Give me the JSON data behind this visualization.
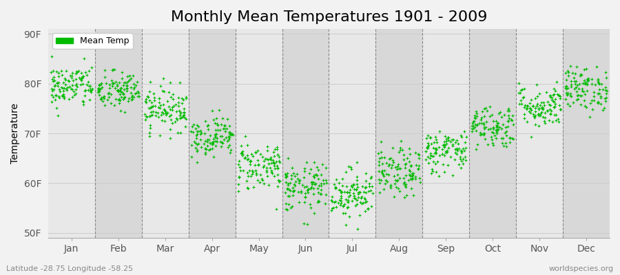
{
  "title": "Monthly Mean Temperatures 1901 - 2009",
  "ylabel": "Temperature",
  "xlabel_labels": [
    "Jan",
    "Feb",
    "Mar",
    "Apr",
    "May",
    "Jun",
    "Jul",
    "Aug",
    "Sep",
    "Oct",
    "Nov",
    "Dec"
  ],
  "ytick_labels": [
    "50F",
    "60F",
    "70F",
    "80F",
    "90F"
  ],
  "ytick_values": [
    50,
    60,
    70,
    80,
    90
  ],
  "ylim": [
    49,
    91
  ],
  "legend_label": "Mean Temp",
  "dot_color": "#00bb00",
  "dot_size": 5,
  "background_color": "#f2f2f2",
  "plot_bg_color": "#f2f2f2",
  "band_color_light": "#e8e8e8",
  "band_color_dark": "#d8d8d8",
  "subtitle_left": "Latitude -28.75 Longitude -58.25",
  "subtitle_right": "worldspecies.org",
  "title_fontsize": 16,
  "label_fontsize": 10,
  "n_years": 109,
  "monthly_means": [
    79.5,
    78.5,
    75.0,
    69.5,
    63.5,
    59.0,
    58.0,
    62.0,
    66.5,
    71.5,
    75.5,
    79.0
  ],
  "monthly_stds": [
    2.2,
    2.0,
    2.2,
    2.0,
    2.5,
    2.5,
    2.5,
    2.5,
    2.2,
    2.2,
    2.2,
    2.2
  ]
}
